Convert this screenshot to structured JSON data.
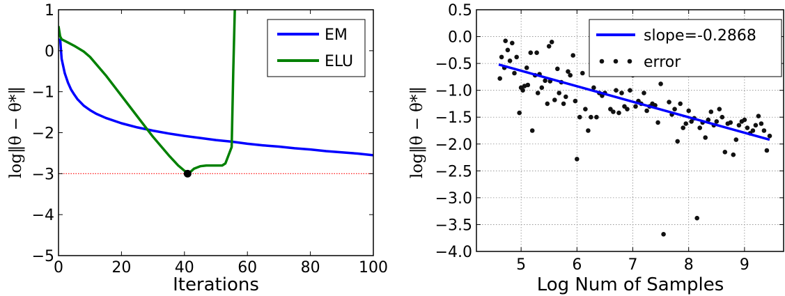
{
  "chart_data": [
    {
      "type": "line",
      "xlabel": "Iterations",
      "ylabel": "log‖θ − θ*‖",
      "xlim": [
        0,
        100
      ],
      "ylim": [
        -5,
        1
      ],
      "xticks": [
        "0",
        "20",
        "40",
        "60",
        "80",
        "100"
      ],
      "yticks": [
        "1",
        "0",
        "−1",
        "−2",
        "−3",
        "−4",
        "−5"
      ],
      "grid": false,
      "legend_position": "top-right",
      "reference_line": {
        "y": -3.0,
        "style": "dotted",
        "color": "#ff0000"
      },
      "marker_point": {
        "x": 41,
        "y": -3.0,
        "color": "#000000"
      },
      "series": [
        {
          "name": "EM",
          "color": "#0000ff",
          "x": [
            0.5,
            1,
            2,
            3,
            4,
            5,
            6,
            8,
            10,
            12,
            15,
            20,
            25,
            30,
            35,
            40,
            45,
            50,
            55,
            60,
            65,
            70,
            75,
            80,
            85,
            90,
            95,
            100
          ],
          "y": [
            0.3,
            -0.2,
            -0.55,
            -0.78,
            -0.95,
            -1.07,
            -1.18,
            -1.34,
            -1.45,
            -1.54,
            -1.64,
            -1.77,
            -1.87,
            -1.95,
            -2.02,
            -2.08,
            -2.13,
            -2.18,
            -2.22,
            -2.27,
            -2.31,
            -2.34,
            -2.38,
            -2.41,
            -2.45,
            -2.48,
            -2.51,
            -2.55
          ]
        },
        {
          "name": "ELU",
          "color": "#008000",
          "x": [
            0,
            0.5,
            1,
            3,
            5,
            8,
            10,
            15,
            20,
            25,
            30,
            35,
            38,
            40,
            41,
            42,
            43,
            44,
            45,
            47,
            50,
            52,
            53,
            55,
            55.5,
            56
          ],
          "y": [
            0.6,
            0.35,
            0.28,
            0.2,
            0.12,
            -0.02,
            -0.15,
            -0.6,
            -1.1,
            -1.6,
            -2.1,
            -2.55,
            -2.8,
            -2.93,
            -2.97,
            -2.95,
            -2.88,
            -2.85,
            -2.82,
            -2.8,
            -2.8,
            -2.8,
            -2.75,
            -2.35,
            -0.5,
            1.0
          ]
        }
      ]
    },
    {
      "type": "scatter",
      "xlabel": "Log Num of Samples",
      "ylabel": "log‖θ − θ*‖",
      "xlim": [
        4.2,
        9.7
      ],
      "ylim": [
        -4.0,
        0.5
      ],
      "xticks": [
        5,
        6,
        7,
        8,
        9
      ],
      "yticks": [
        "0.5",
        "0.0",
        "−0.5",
        "−1.0",
        "−1.5",
        "−2.0",
        "−2.5",
        "−3.0",
        "−3.5",
        "−4.0"
      ],
      "grid": true,
      "legend_position": "top-right",
      "series": [
        {
          "name": "slope=-0.2868",
          "type": "line",
          "color": "#0000ff",
          "x": [
            4.6,
            9.45
          ],
          "y": [
            -0.52,
            -1.92
          ]
        },
        {
          "name": "error",
          "type": "scatter",
          "color": "#000000",
          "x": [
            4.62,
            4.65,
            4.7,
            4.72,
            4.76,
            4.8,
            4.84,
            4.88,
            4.92,
            4.97,
            5.0,
            5.03,
            5.06,
            5.1,
            5.12,
            5.17,
            5.2,
            5.25,
            5.28,
            5.3,
            5.33,
            5.37,
            5.43,
            5.47,
            5.5,
            5.52,
            5.55,
            5.6,
            5.65,
            5.68,
            5.72,
            5.76,
            5.8,
            5.84,
            5.88,
            5.93,
            5.97,
            6.0,
            6.05,
            6.1,
            6.15,
            6.2,
            6.25,
            6.3,
            6.35,
            6.4,
            6.45,
            6.5,
            6.55,
            6.6,
            6.65,
            6.7,
            6.75,
            6.8,
            6.85,
            6.9,
            6.95,
            7.0,
            7.05,
            7.1,
            7.15,
            7.2,
            7.25,
            7.3,
            7.35,
            7.4,
            7.45,
            7.5,
            7.55,
            7.6,
            7.65,
            7.7,
            7.75,
            7.8,
            7.85,
            7.9,
            7.95,
            8.0,
            8.05,
            8.1,
            8.15,
            8.2,
            8.25,
            8.3,
            8.35,
            8.4,
            8.45,
            8.5,
            8.55,
            8.6,
            8.65,
            8.7,
            8.75,
            8.8,
            8.85,
            8.9,
            8.95,
            9.0,
            9.05,
            9.1,
            9.15,
            9.2,
            9.25,
            9.3,
            9.35,
            9.4,
            9.45
          ],
          "y": [
            -0.78,
            -0.38,
            -0.58,
            -0.08,
            -0.25,
            -0.45,
            -0.12,
            -0.68,
            -0.38,
            -1.42,
            -0.95,
            -1.0,
            -0.92,
            -0.58,
            -0.9,
            -0.3,
            -1.75,
            -0.72,
            -0.3,
            -1.05,
            -0.7,
            -0.95,
            -0.82,
            -1.25,
            -0.18,
            -0.83,
            -0.1,
            -1.18,
            -0.6,
            -1.05,
            -0.85,
            -1.25,
            -1.12,
            -0.65,
            -0.72,
            -0.35,
            -1.2,
            -2.28,
            -1.5,
            -0.68,
            -1.35,
            -1.75,
            -1.5,
            -0.95,
            -1.5,
            -1.05,
            -1.1,
            -1.05,
            -0.42,
            -1.35,
            -1.4,
            -1.0,
            -1.42,
            -1.05,
            -1.3,
            -1.35,
            -1.0,
            -0.72,
            -1.3,
            -1.2,
            -1.25,
            -1.05,
            -1.38,
            -1.3,
            -1.25,
            -1.28,
            -1.6,
            -0.88,
            -3.68,
            -0.7,
            -1.22,
            -1.45,
            -1.35,
            -1.95,
            -1.25,
            -1.7,
            -1.62,
            -1.38,
            -1.58,
            -1.52,
            -3.38,
            -1.7,
            -1.6,
            -1.88,
            -1.55,
            -1.4,
            -1.65,
            -1.58,
            -1.35,
            -1.5,
            -2.15,
            -1.62,
            -1.6,
            -2.2,
            -1.92,
            -1.65,
            -1.58,
            -1.55,
            -1.7,
            -1.8,
            -1.75,
            -1.65,
            -1.48,
            -1.62,
            -1.75,
            -2.12,
            -1.85
          ]
        }
      ]
    }
  ]
}
